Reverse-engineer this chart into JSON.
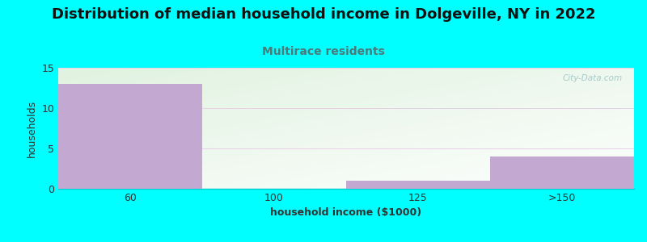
{
  "title": "Distribution of median household income in Dolgeville, NY in 2022",
  "subtitle": "Multirace residents",
  "subtitle_color": "#4A7A7A",
  "xlabel": "household income ($1000)",
  "ylabel": "households",
  "categories": [
    "60",
    "100",
    "125",
    ">150"
  ],
  "values": [
    13,
    0,
    1,
    4
  ],
  "bar_color": "#C3A8D1",
  "bar_edge_color": "#C3A8D1",
  "background_color": "#00FFFF",
  "plot_bg_color_top_left": "#D8EED8",
  "plot_bg_color_right": "#FFFFFF",
  "ylim": [
    0,
    15
  ],
  "yticks": [
    0,
    5,
    10,
    15
  ],
  "title_fontsize": 13,
  "subtitle_fontsize": 10,
  "axis_label_fontsize": 9,
  "tick_fontsize": 9,
  "watermark_text": "City-Data.com",
  "edges": [
    0,
    1,
    2,
    3,
    4
  ]
}
